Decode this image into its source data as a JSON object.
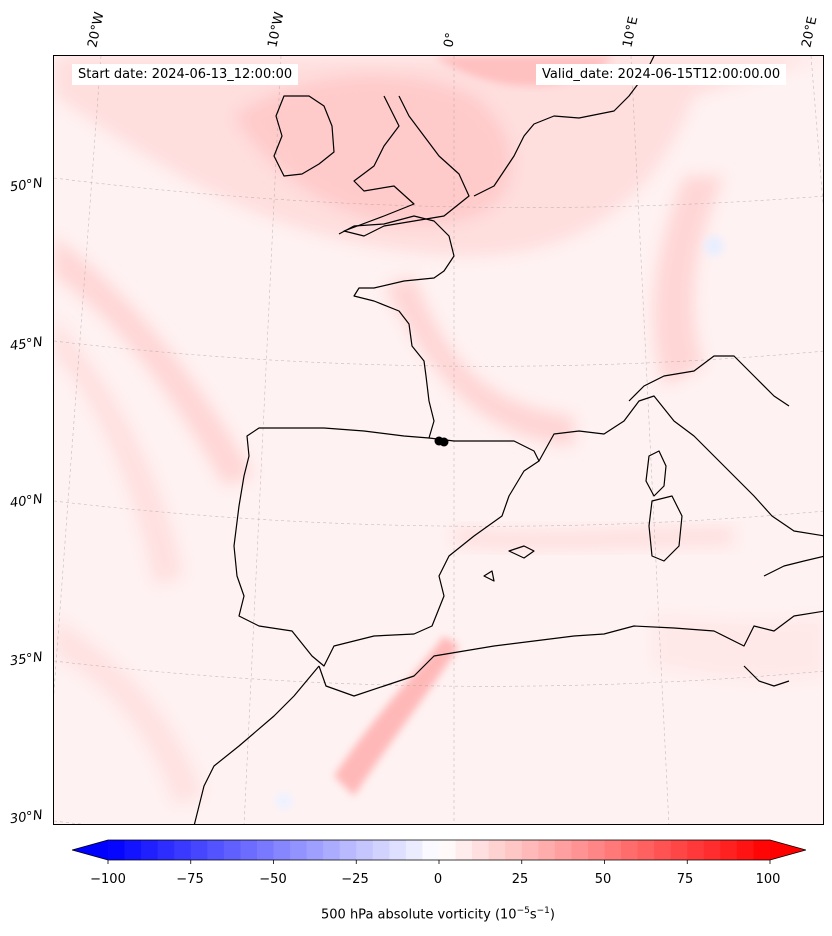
{
  "header": {
    "start_date": "Start date: 2024-06-13_12:00:00",
    "valid_date": "Valid_date: 2024-06-15T12:00:00.00"
  },
  "map": {
    "region": "Western Europe / Iberia",
    "projection": "conic",
    "lon_labels": [
      "20°W",
      "10°W",
      "0°",
      "10°E",
      "20°E"
    ],
    "lat_labels": [
      "50°N",
      "45°N",
      "40°N",
      "35°N",
      "30°N"
    ],
    "gridlines": true,
    "field": "500 hPa absolute vorticity",
    "colormap": "bwr",
    "marker_color": "#000000"
  },
  "colorbar": {
    "ticks": [
      "−100",
      "−75",
      "−50",
      "−25",
      "0",
      "25",
      "50",
      "75",
      "100"
    ],
    "vmin": -100,
    "vmax": 100,
    "label_main": "500 hPa absolute vorticity (10",
    "label_exp1": "−5",
    "label_mid": "s",
    "label_exp2": "−1",
    "label_end": ")",
    "extend": "both",
    "colors": {
      "min": "#0000ff",
      "mid": "#ffffff",
      "max": "#ff0000"
    }
  }
}
